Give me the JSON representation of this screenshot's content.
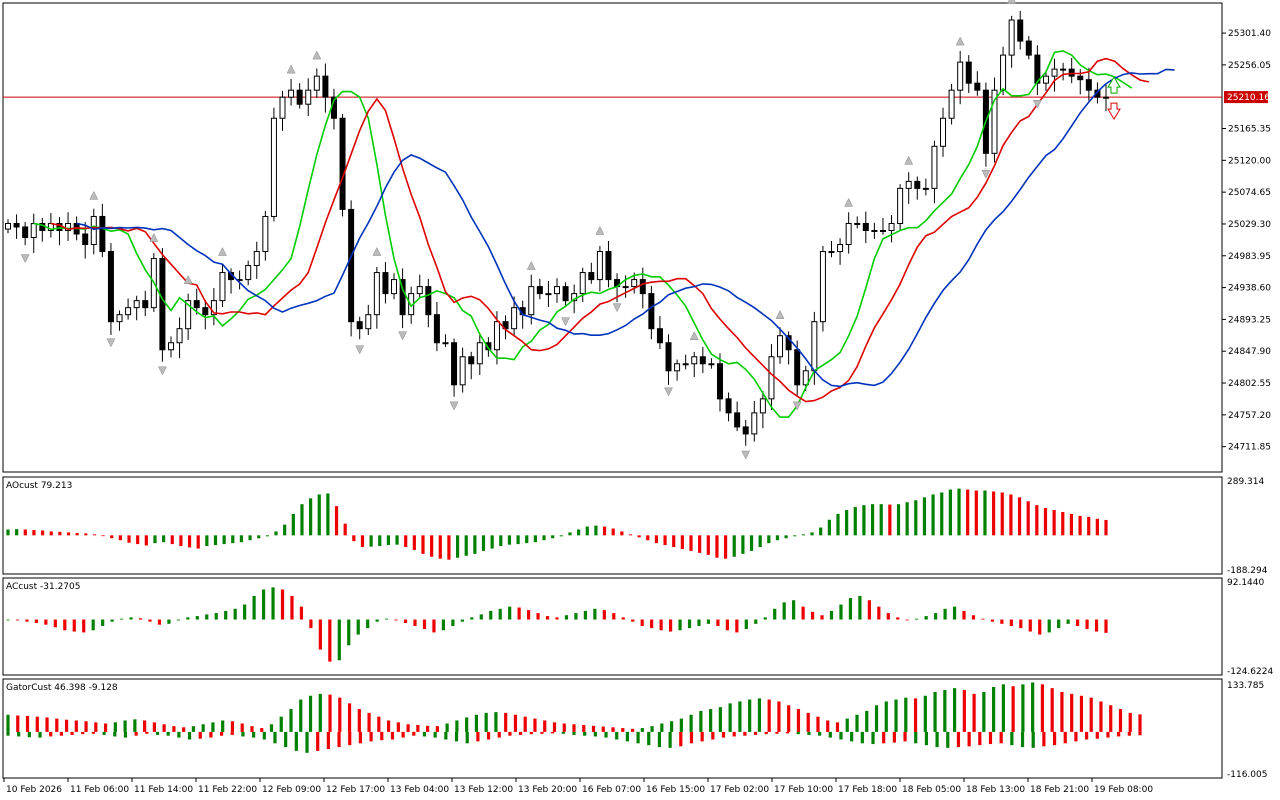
{
  "window": {
    "title": ""
  },
  "panels": {
    "main": {
      "price_line_label": "25210.16"
    },
    "ao": {
      "label": "AOcust 79.213",
      "y_top_label": "289.314",
      "y_bottom_label": "-188.294"
    },
    "ac": {
      "label": "ACcust -31.2705",
      "y_top_label": "92.1440",
      "y_bottom_label": "-124.6224"
    },
    "gator": {
      "label": "GatorCust 46.398 -9.128",
      "y_top_label": "133.785",
      "y_bottom_label": "-116.005"
    }
  },
  "chart_data": [
    {
      "type": "candlestick",
      "title": "",
      "ylim": [
        24680,
        25340
      ],
      "y_ticks": [
        "25301.40",
        "25256.05",
        "25210.16",
        "25165.35",
        "25120.00",
        "25074.65",
        "25029.30",
        "24983.95",
        "24938.60",
        "24893.25",
        "24847.90",
        "24802.55",
        "24757.20",
        "24711.85"
      ],
      "y_tick_values": [
        25301.4,
        25256.05,
        25210.16,
        25165.35,
        25120.0,
        25074.65,
        25029.3,
        24983.95,
        24938.6,
        24893.25,
        24847.9,
        24802.55,
        24757.2,
        24711.85
      ],
      "x_ticks": [
        "10 Feb 2026",
        "11 Feb 06:00",
        "11 Feb 14:00",
        "11 Feb 22:00",
        "12 Feb 09:00",
        "12 Feb 17:00",
        "13 Feb 04:00",
        "13 Feb 12:00",
        "13 Feb 20:00",
        "16 Feb 07:00",
        "16 Feb 15:00",
        "17 Feb 02:00",
        "17 Feb 10:00",
        "17 Feb 18:00",
        "18 Feb 05:00",
        "18 Feb 13:00",
        "18 Feb 21:00",
        "19 Feb 08:00"
      ],
      "current_price": 25210.16,
      "colors": {
        "up": "#ffffff",
        "down": "#000000",
        "price_line": "#cc0000",
        "ma_fast": "#00cc00",
        "ma_mid": "#dd0000",
        "ma_slow": "#0033bb"
      },
      "close": [
        25030,
        25025,
        25010,
        25030,
        25020,
        25030,
        25020,
        25030,
        25015,
        25000,
        25040,
        24990,
        24890,
        24900,
        24910,
        24920,
        24910,
        24980,
        24850,
        24860,
        24880,
        24920,
        24910,
        24900,
        24920,
        24960,
        24950,
        24950,
        24970,
        24990,
        25040,
        25180,
        25210,
        25220,
        25200,
        25220,
        25240,
        25210,
        25180,
        25050,
        24890,
        24880,
        24900,
        24960,
        24930,
        24950,
        24900,
        24930,
        24940,
        24900,
        24860,
        24860,
        24800,
        24840,
        24830,
        24860,
        24850,
        24890,
        24880,
        24910,
        24900,
        24940,
        24930,
        24930,
        24940,
        24920,
        24930,
        24960,
        24950,
        24990,
        24950,
        24940,
        24940,
        24950,
        24930,
        24880,
        24860,
        24820,
        24830,
        24830,
        24840,
        24830,
        24830,
        24780,
        24760,
        24740,
        24730,
        24760,
        24780,
        24840,
        24870,
        24850,
        24800,
        24820,
        24890,
        24990,
        24990,
        25000,
        25030,
        25030,
        25020,
        25020,
        25020,
        25030,
        25080,
        25090,
        25080,
        25080,
        25140,
        25180,
        25220,
        25260,
        25230,
        25220,
        25130,
        25220,
        25270,
        25320,
        25290,
        25270,
        25230,
        25240,
        25250,
        25250,
        25240,
        25235,
        25220,
        25210,
        25210
      ]
    },
    {
      "type": "bar",
      "series_name": "AOcust",
      "ylim": [
        -188.294,
        289.314
      ],
      "values": [
        30,
        32,
        30,
        27,
        25,
        20,
        18,
        15,
        12,
        10,
        5,
        0,
        -15,
        -25,
        -38,
        -45,
        -52,
        -40,
        -35,
        -45,
        -55,
        -62,
        -68,
        -55,
        -50,
        -45,
        -40,
        -35,
        -25,
        -15,
        -5,
        20,
        55,
        110,
        160,
        190,
        210,
        215,
        150,
        60,
        -30,
        -60,
        -58,
        -55,
        -50,
        -48,
        -60,
        -75,
        -95,
        -110,
        -120,
        -125,
        -115,
        -105,
        -95,
        -80,
        -68,
        -55,
        -48,
        -45,
        -40,
        -35,
        -25,
        -15,
        -5,
        15,
        30,
        45,
        50,
        45,
        35,
        20,
        5,
        -10,
        -25,
        -40,
        -50,
        -60,
        -70,
        -80,
        -90,
        -100,
        -115,
        -120,
        -110,
        -95,
        -80,
        -60,
        -40,
        -25,
        -15,
        -5,
        5,
        15,
        40,
        80,
        110,
        130,
        145,
        155,
        160,
        160,
        158,
        160,
        170,
        180,
        195,
        210,
        220,
        235,
        240,
        235,
        230,
        230,
        225,
        220,
        210,
        195,
        175,
        155,
        140,
        130,
        120,
        110,
        100,
        95,
        85,
        79
      ]
    },
    {
      "type": "bar",
      "series_name": "ACcust",
      "ylim": [
        -124.6224,
        92.144
      ],
      "values": [
        0,
        -2,
        -5,
        -8,
        -12,
        -18,
        -25,
        -28,
        -30,
        -25,
        -15,
        -5,
        2,
        5,
        3,
        -5,
        -12,
        -10,
        -2,
        5,
        8,
        12,
        15,
        20,
        25,
        35,
        55,
        70,
        75,
        70,
        55,
        30,
        -20,
        -70,
        -98,
        -95,
        -60,
        -35,
        -20,
        -5,
        2,
        -2,
        -8,
        -15,
        -22,
        -30,
        -25,
        -15,
        -5,
        5,
        12,
        20,
        25,
        30,
        28,
        22,
        15,
        8,
        5,
        10,
        15,
        20,
        25,
        22,
        15,
        5,
        -5,
        -15,
        -20,
        -25,
        -28,
        -25,
        -20,
        -15,
        -10,
        -15,
        -25,
        -30,
        -22,
        -10,
        5,
        25,
        40,
        45,
        30,
        18,
        10,
        20,
        35,
        50,
        55,
        45,
        30,
        15,
        5,
        0,
        2,
        8,
        15,
        25,
        30,
        20,
        10,
        2,
        -5,
        -10,
        -15,
        -20,
        -28,
        -35,
        -30,
        -20,
        -10,
        -15,
        -22,
        -28,
        -31
      ]
    },
    {
      "type": "bar",
      "series_name": "GatorCust",
      "ylim": [
        -116.005,
        133.785
      ],
      "upper_values": [
        45,
        43,
        42,
        40,
        38,
        35,
        32,
        30,
        28,
        25,
        22,
        25,
        30,
        33,
        30,
        25,
        20,
        15,
        12,
        15,
        20,
        25,
        30,
        28,
        22,
        15,
        10,
        20,
        40,
        60,
        85,
        95,
        100,
        98,
        90,
        75,
        60,
        50,
        40,
        30,
        25,
        20,
        18,
        16,
        15,
        22,
        30,
        38,
        45,
        50,
        52,
        50,
        45,
        40,
        35,
        30,
        25,
        22,
        20,
        18,
        16,
        14,
        12,
        10,
        8,
        10,
        15,
        22,
        28,
        35,
        45,
        55,
        60,
        65,
        75,
        80,
        85,
        88,
        85,
        80,
        70,
        60,
        50,
        40,
        30,
        25,
        35,
        45,
        55,
        70,
        80,
        85,
        90,
        88,
        95,
        105,
        110,
        115,
        110,
        100,
        105,
        118,
        125,
        120,
        125,
        130,
        125,
        115,
        105,
        100,
        95,
        90,
        80,
        70,
        60,
        50,
        46
      ],
      "lower_values": [
        -10,
        -12,
        -14,
        -15,
        -12,
        -10,
        -8,
        -6,
        -5,
        -8,
        -12,
        -15,
        -10,
        -5,
        -8,
        -10,
        -15,
        -20,
        -18,
        -15,
        -10,
        -8,
        -12,
        -15,
        -20,
        -30,
        -40,
        -50,
        -55,
        -50,
        -45,
        -40,
        -35,
        -30,
        -25,
        -22,
        -20,
        -15,
        -10,
        -12,
        -15,
        -20,
        -25,
        -30,
        -25,
        -20,
        -15,
        -10,
        -8,
        -6,
        -5,
        -4,
        -5,
        -8,
        -10,
        -12,
        -15,
        -20,
        -25,
        -30,
        -35,
        -40,
        -42,
        -38,
        -30,
        -25,
        -20,
        -15,
        -12,
        -10,
        -8,
        -6,
        -5,
        -4,
        -6,
        -8,
        -10,
        -15,
        -20,
        -25,
        -30,
        -32,
        -30,
        -28,
        -25,
        -30,
        -35,
        -40,
        -42,
        -40,
        -38,
        -35,
        -32,
        -30,
        -35,
        -40,
        -42,
        -38,
        -35,
        -30,
        -25,
        -20,
        -18,
        -15,
        -12,
        -10,
        -9
      ]
    }
  ]
}
